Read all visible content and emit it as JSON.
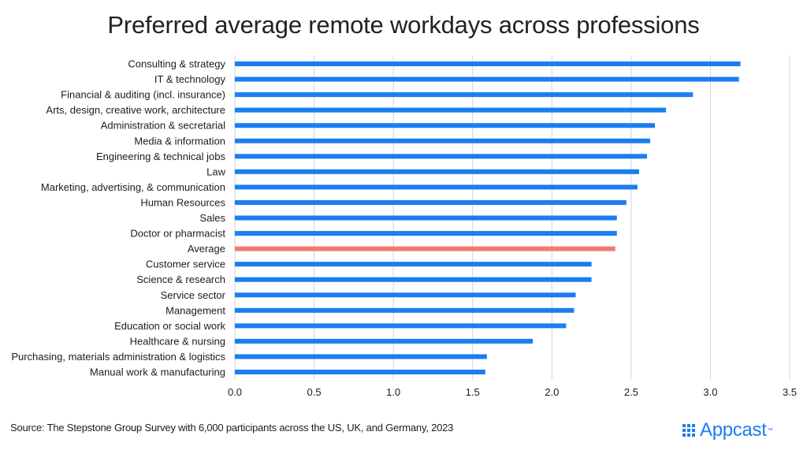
{
  "chart_data": {
    "type": "bar",
    "orientation": "horizontal",
    "title": "Preferred average remote workdays across professions",
    "categories": [
      "Consulting & strategy",
      "IT & technology",
      "Financial & auditing (incl. insurance)",
      "Arts, design, creative work, architecture",
      "Administration & secretarial",
      "Media & information",
      "Engineering & technical jobs",
      "Law",
      "Marketing, advertising, & communication",
      "Human Resources",
      "Sales",
      "Doctor or pharmacist",
      "Average",
      "Customer service",
      "Science & research",
      "Service sector",
      "Management",
      "Education or social work",
      "Healthcare & nursing",
      "Purchasing, materials administration & logistics",
      "Manual work & manufacturing"
    ],
    "values": [
      3.19,
      3.18,
      2.89,
      2.72,
      2.65,
      2.62,
      2.6,
      2.55,
      2.54,
      2.47,
      2.41,
      2.41,
      2.4,
      2.25,
      2.25,
      2.15,
      2.14,
      2.09,
      1.88,
      1.59,
      1.58
    ],
    "highlight": "Average",
    "colors": {
      "bar": "#1a7ef0",
      "highlight": "#f07b6e",
      "grid": "#cfd3e6"
    },
    "xlim": [
      0,
      3.5
    ],
    "xticks": [
      "0.0",
      "0.5",
      "1.0",
      "1.5",
      "2.0",
      "2.5",
      "3.0",
      "3.5"
    ],
    "xlabel": "",
    "ylabel": "",
    "grid": true
  },
  "source": "Source: The Stepstone Group Survey with 6,000 participants across the US, UK, and Germany, 2023",
  "logo": {
    "text": "Appcast",
    "tm": "™",
    "color": "#1a7ef0"
  }
}
